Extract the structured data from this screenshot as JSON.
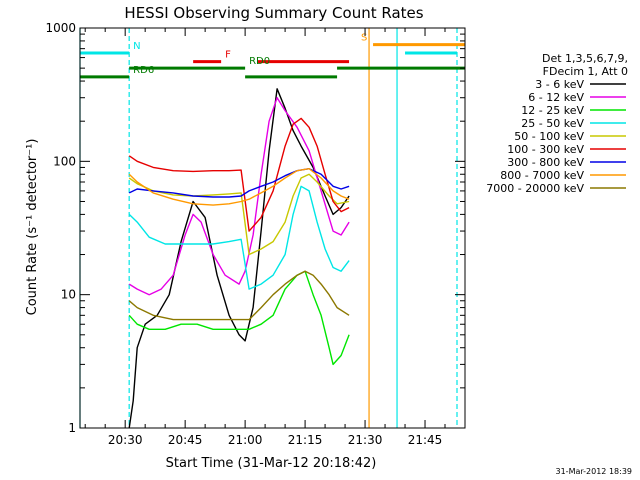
{
  "chart_data": {
    "type": "line",
    "title": "HESSI Observing Summary Count Rates",
    "xlabel": "Start Time (31-Mar-12 20:18:42)",
    "ylabel": "Count Rate (s⁻¹ detector⁻¹)",
    "y_scale": "log",
    "ylim": [
      1,
      1000
    ],
    "xlim": [
      "20:18:42",
      "21:55:00"
    ],
    "x_ticks": [
      "20:30",
      "20:45",
      "21:00",
      "21:15",
      "21:30",
      "21:45"
    ],
    "y_ticks": [
      "1",
      "10",
      "100",
      "1000"
    ],
    "legend_header": [
      "Det 1,3,5,6,7,9,",
      "FDecim 1, Att 0"
    ],
    "legend_position": "right",
    "timestamp": "31-Mar-2012 18:39",
    "series": [
      {
        "name": "3 - 6 keV",
        "color": "#000000",
        "points": [
          [
            "20:31:00",
            1.0
          ],
          [
            "20:32:00",
            1.6
          ],
          [
            "20:33:00",
            4
          ],
          [
            "20:35:00",
            6
          ],
          [
            "20:38:00",
            7
          ],
          [
            "20:41:00",
            10
          ],
          [
            "20:44:00",
            25
          ],
          [
            "20:47:00",
            50
          ],
          [
            "20:50:00",
            38
          ],
          [
            "20:53:00",
            14
          ],
          [
            "20:56:00",
            7
          ],
          [
            "20:58:30",
            5
          ],
          [
            "21:00:00",
            4.5
          ],
          [
            "21:02:00",
            8
          ],
          [
            "21:04:00",
            30
          ],
          [
            "21:06:00",
            120
          ],
          [
            "21:08:00",
            350
          ],
          [
            "21:10:00",
            250
          ],
          [
            "21:12:00",
            170
          ],
          [
            "21:14:00",
            130
          ],
          [
            "21:17:00",
            90
          ],
          [
            "21:20:00",
            55
          ],
          [
            "21:22:00",
            40
          ],
          [
            "21:24:00",
            45
          ],
          [
            "21:26:00",
            55
          ]
        ]
      },
      {
        "name": "6 - 12 keV",
        "color": "#e600e6",
        "points": [
          [
            "20:31:00",
            12
          ],
          [
            "20:33:00",
            11
          ],
          [
            "20:36:00",
            10
          ],
          [
            "20:39:00",
            11
          ],
          [
            "20:42:00",
            14
          ],
          [
            "20:45:00",
            28
          ],
          [
            "20:47:00",
            40
          ],
          [
            "20:49:00",
            35
          ],
          [
            "20:52:00",
            20
          ],
          [
            "20:55:00",
            14
          ],
          [
            "20:58:30",
            12
          ],
          [
            "21:00:00",
            15
          ],
          [
            "21:02:00",
            28
          ],
          [
            "21:04:00",
            80
          ],
          [
            "21:06:00",
            200
          ],
          [
            "21:08:00",
            300
          ],
          [
            "21:10:00",
            240
          ],
          [
            "21:13:00",
            180
          ],
          [
            "21:16:00",
            120
          ],
          [
            "21:19:00",
            60
          ],
          [
            "21:22:00",
            30
          ],
          [
            "21:24:00",
            28
          ],
          [
            "21:26:00",
            35
          ]
        ]
      },
      {
        "name": "12 - 25 keV",
        "color": "#00e600",
        "points": [
          [
            "20:31:00",
            7
          ],
          [
            "20:33:00",
            6
          ],
          [
            "20:36:00",
            5.5
          ],
          [
            "20:40:00",
            5.5
          ],
          [
            "20:44:00",
            6
          ],
          [
            "20:48:00",
            6
          ],
          [
            "20:52:00",
            5.5
          ],
          [
            "20:56:00",
            5.5
          ],
          [
            "20:59:00",
            5.5
          ],
          [
            "21:01:00",
            5.5
          ],
          [
            "21:04:00",
            6
          ],
          [
            "21:07:00",
            7
          ],
          [
            "21:10:00",
            11
          ],
          [
            "21:13:00",
            14
          ],
          [
            "21:15:00",
            15
          ],
          [
            "21:17:00",
            10
          ],
          [
            "21:19:00",
            7
          ],
          [
            "21:21:00",
            4
          ],
          [
            "21:22:00",
            3
          ],
          [
            "21:24:00",
            3.5
          ],
          [
            "21:26:00",
            5
          ]
        ]
      },
      {
        "name": "25 - 50 keV",
        "color": "#00e6e6",
        "points": [
          [
            "20:31:00",
            40
          ],
          [
            "20:33:00",
            35
          ],
          [
            "20:36:00",
            27
          ],
          [
            "20:40:00",
            24
          ],
          [
            "20:44:00",
            24
          ],
          [
            "20:48:00",
            24
          ],
          [
            "20:52:00",
            24
          ],
          [
            "20:56:00",
            25
          ],
          [
            "20:59:00",
            26
          ],
          [
            "21:01:00",
            11
          ],
          [
            "21:04:00",
            12
          ],
          [
            "21:07:00",
            14
          ],
          [
            "21:10:00",
            20
          ],
          [
            "21:12:00",
            40
          ],
          [
            "21:14:00",
            65
          ],
          [
            "21:16:00",
            60
          ],
          [
            "21:18:00",
            35
          ],
          [
            "21:20:00",
            22
          ],
          [
            "21:22:00",
            16
          ],
          [
            "21:24:00",
            15
          ],
          [
            "21:26:00",
            18
          ]
        ]
      },
      {
        "name": "50 - 100 keV",
        "color": "#c8c800",
        "points": [
          [
            "20:31:00",
            75
          ],
          [
            "20:33:00",
            68
          ],
          [
            "20:37:00",
            60
          ],
          [
            "20:42:00",
            56
          ],
          [
            "20:47:00",
            55
          ],
          [
            "20:52:00",
            56
          ],
          [
            "20:56:00",
            57
          ],
          [
            "20:59:00",
            58
          ],
          [
            "21:01:00",
            20
          ],
          [
            "21:04:00",
            22
          ],
          [
            "21:07:00",
            25
          ],
          [
            "21:10:00",
            35
          ],
          [
            "21:12:00",
            55
          ],
          [
            "21:14:00",
            75
          ],
          [
            "21:16:00",
            80
          ],
          [
            "21:18:00",
            70
          ],
          [
            "21:21:00",
            55
          ],
          [
            "21:23:00",
            48
          ],
          [
            "21:26:00",
            50
          ]
        ]
      },
      {
        "name": "100 - 300 keV",
        "color": "#e60000",
        "points": [
          [
            "20:31:00",
            110
          ],
          [
            "20:33:00",
            100
          ],
          [
            "20:37:00",
            90
          ],
          [
            "20:42:00",
            85
          ],
          [
            "20:47:00",
            84
          ],
          [
            "20:52:00",
            85
          ],
          [
            "20:56:00",
            85
          ],
          [
            "20:59:00",
            86
          ],
          [
            "21:01:00",
            30
          ],
          [
            "21:04:00",
            38
          ],
          [
            "21:07:00",
            60
          ],
          [
            "21:10:00",
            130
          ],
          [
            "21:12:00",
            190
          ],
          [
            "21:14:00",
            210
          ],
          [
            "21:16:00",
            180
          ],
          [
            "21:18:00",
            130
          ],
          [
            "21:20:00",
            80
          ],
          [
            "21:22:00",
            50
          ],
          [
            "21:24:00",
            42
          ],
          [
            "21:26:00",
            45
          ]
        ]
      },
      {
        "name": "300 - 800 keV",
        "color": "#0000e6",
        "points": [
          [
            "20:31:00",
            58
          ],
          [
            "20:33:00",
            62
          ],
          [
            "20:37:00",
            60
          ],
          [
            "20:42:00",
            58
          ],
          [
            "20:47:00",
            55
          ],
          [
            "20:52:00",
            54
          ],
          [
            "20:56:00",
            54
          ],
          [
            "20:59:00",
            55
          ],
          [
            "21:01:00",
            60
          ],
          [
            "21:04:00",
            65
          ],
          [
            "21:07:00",
            70
          ],
          [
            "21:10:00",
            78
          ],
          [
            "21:13:00",
            85
          ],
          [
            "21:16:00",
            88
          ],
          [
            "21:19:00",
            80
          ],
          [
            "21:22:00",
            65
          ],
          [
            "21:24:00",
            62
          ],
          [
            "21:26:00",
            65
          ]
        ]
      },
      {
        "name": "800 - 7000 keV",
        "color": "#ff9900",
        "points": [
          [
            "20:31:00",
            80
          ],
          [
            "20:33:00",
            70
          ],
          [
            "20:37:00",
            58
          ],
          [
            "20:42:00",
            52
          ],
          [
            "20:47:00",
            48
          ],
          [
            "20:52:00",
            47
          ],
          [
            "20:56:00",
            48
          ],
          [
            "20:59:00",
            50
          ],
          [
            "21:01:00",
            52
          ],
          [
            "21:04:00",
            58
          ],
          [
            "21:07:00",
            65
          ],
          [
            "21:10:00",
            75
          ],
          [
            "21:13:00",
            85
          ],
          [
            "21:16:00",
            88
          ],
          [
            "21:19:00",
            75
          ],
          [
            "21:22:00",
            60
          ],
          [
            "21:24:00",
            55
          ],
          [
            "21:26:00",
            52
          ]
        ]
      },
      {
        "name": "7000 - 20000 keV",
        "color": "#8c7800",
        "points": [
          [
            "20:31:00",
            9
          ],
          [
            "20:33:00",
            8
          ],
          [
            "20:37:00",
            7
          ],
          [
            "20:42:00",
            6.5
          ],
          [
            "20:47:00",
            6.5
          ],
          [
            "20:52:00",
            6.5
          ],
          [
            "20:56:00",
            6.5
          ],
          [
            "20:59:00",
            6.5
          ],
          [
            "21:01:00",
            6.5
          ],
          [
            "21:04:00",
            8
          ],
          [
            "21:07:00",
            10
          ],
          [
            "21:10:00",
            12
          ],
          [
            "21:13:00",
            14
          ],
          [
            "21:15:00",
            15
          ],
          [
            "21:17:00",
            14
          ],
          [
            "21:19:00",
            12
          ],
          [
            "21:21:00",
            10
          ],
          [
            "21:23:00",
            8
          ],
          [
            "21:26:00",
            7
          ]
        ]
      }
    ],
    "flag_bars": [
      {
        "label": "N",
        "color": "#00e6e6",
        "segments": [
          [
            "20:18:42",
            "20:31:00"
          ],
          [
            "21:40:00",
            "21:53:00"
          ]
        ],
        "level": 650
      },
      {
        "label": "F",
        "color": "#e60000",
        "segments": [
          [
            "20:47:00",
            "20:54:00"
          ],
          [
            "21:03:00",
            "21:26:00"
          ]
        ],
        "level": 560
      },
      {
        "label": "S",
        "color": "#ff9900",
        "segments": [
          [
            "21:32:00",
            "21:55:00"
          ]
        ],
        "level": 750
      },
      {
        "label": "RD0",
        "color": "#007a00",
        "segments": [
          [
            "20:31:00",
            "21:00:00"
          ],
          [
            "21:23:00",
            "21:55:00"
          ]
        ],
        "level": 500
      },
      {
        "label": "RD6",
        "color": "#007a00",
        "segments": [
          [
            "20:18:42",
            "20:31:00"
          ],
          [
            "21:00:00",
            "21:23:00"
          ]
        ],
        "level": 430
      }
    ],
    "vlines": [
      {
        "time": "20:18:42",
        "color": "#00e6e6",
        "style": "solid"
      },
      {
        "time": "20:31:00",
        "color": "#00e6e6",
        "style": "dashed"
      },
      {
        "time": "21:31:00",
        "color": "#ff9900",
        "style": "solid"
      },
      {
        "time": "21:38:00",
        "color": "#00e6e6",
        "style": "solid"
      },
      {
        "time": "21:53:00",
        "color": "#00e6e6",
        "style": "dashed"
      }
    ]
  }
}
